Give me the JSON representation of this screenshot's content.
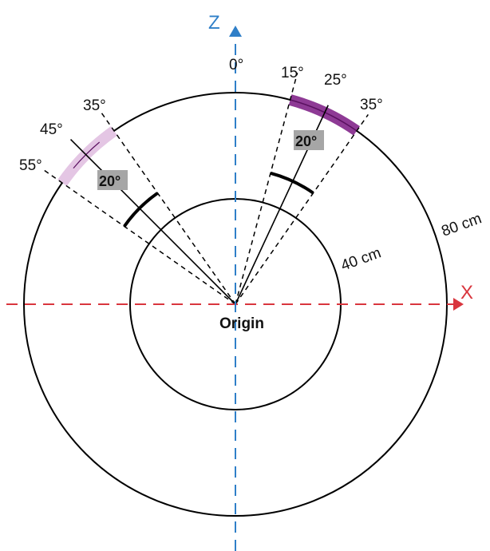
{
  "axes": {
    "z_label": "Z",
    "x_label": "X",
    "z_color": "#2f7fc8",
    "x_color": "#d9363e"
  },
  "origin_label": "Origin",
  "circles": {
    "inner_label": "40 cm",
    "outer_label": "80 cm"
  },
  "left_detector": {
    "rays": [
      {
        "label": "35°"
      },
      {
        "label": "45°"
      },
      {
        "label": "55°"
      }
    ],
    "angle_label": "20°",
    "band_color": "#e4c6e4"
  },
  "right_detector": {
    "rays": [
      {
        "label": "15°"
      },
      {
        "label": "25°"
      },
      {
        "label": "35°"
      }
    ],
    "angle_label": "20°",
    "band_color": "#8e3a95"
  },
  "zero_label": "0°",
  "angle_box_color": "#a6a6a6"
}
